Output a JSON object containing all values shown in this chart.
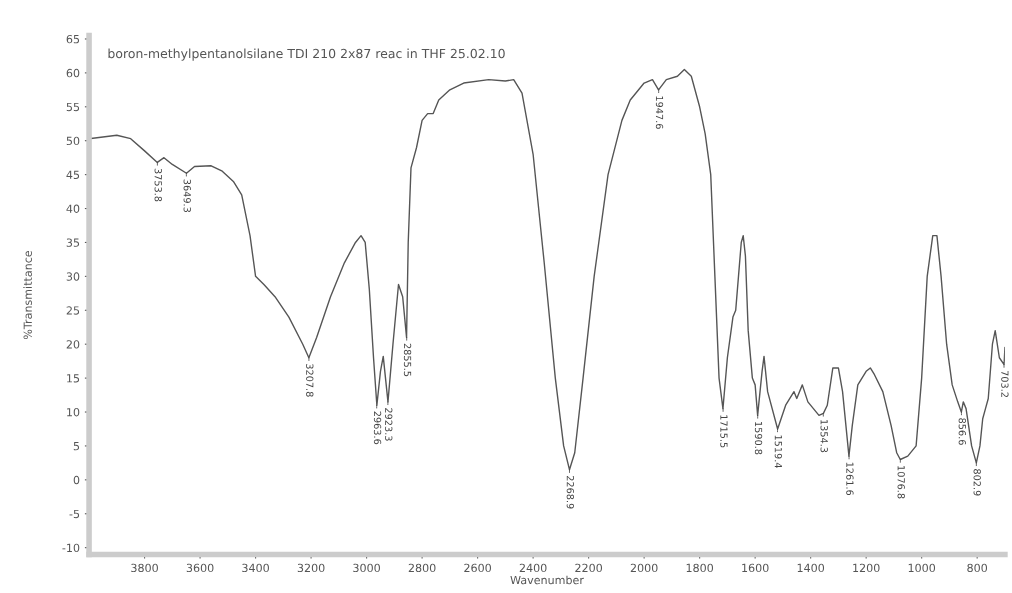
{
  "chart_data": {
    "type": "line",
    "title": "boron-methylpentanolsilane TDI 210 2x87 reac in THF 25.02.10",
    "xlabel": "Wavenumber",
    "ylabel": "%Transmittance",
    "xlim": [
      4000,
      700
    ],
    "ylim": [
      -11,
      65.5
    ],
    "xticks": [
      3800,
      3600,
      3400,
      3200,
      3000,
      2800,
      2600,
      2400,
      2200,
      2000,
      1800,
      1600,
      1400,
      1200,
      1000,
      800
    ],
    "yticks": [
      -10,
      -5,
      0,
      5,
      10,
      15,
      20,
      25,
      30,
      35,
      40,
      45,
      50,
      55,
      60,
      65
    ],
    "grid": false,
    "marker": "none",
    "line_style": "solid",
    "series": [
      {
        "color": "#555555",
        "x": [
          4000,
          3900,
          3850,
          3800,
          3754,
          3730,
          3700,
          3649,
          3620,
          3560,
          3520,
          3480,
          3450,
          3420,
          3400,
          3370,
          3330,
          3280,
          3230,
          3208,
          3180,
          3130,
          3080,
          3040,
          3020,
          3005,
          2990,
          2975,
          2963,
          2950,
          2940,
          2923,
          2905,
          2885,
          2870,
          2856,
          2850,
          2840,
          2820,
          2800,
          2780,
          2760,
          2740,
          2700,
          2650,
          2560,
          2500,
          2470,
          2440,
          2400,
          2360,
          2320,
          2290,
          2269,
          2250,
          2220,
          2180,
          2130,
          2080,
          2050,
          2000,
          1970,
          1948,
          1920,
          1880,
          1855,
          1830,
          1800,
          1780,
          1760,
          1745,
          1730,
          1716,
          1700,
          1680,
          1670,
          1650,
          1643,
          1635,
          1625,
          1610,
          1600,
          1591,
          1575,
          1568,
          1555,
          1519,
          1490,
          1460,
          1450,
          1430,
          1410,
          1390,
          1370,
          1354,
          1340,
          1320,
          1300,
          1285,
          1262,
          1250,
          1230,
          1200,
          1185,
          1170,
          1140,
          1110,
          1090,
          1077,
          1050,
          1020,
          1000,
          980,
          960,
          945,
          930,
          910,
          890,
          870,
          857,
          850,
          840,
          820,
          803,
          790,
          780,
          770,
          760,
          745,
          735,
          720,
          703,
          700
        ],
        "values": [
          50.3,
          50.8,
          50.3,
          48.5,
          46.8,
          47.5,
          46.5,
          45.2,
          46.2,
          46.3,
          45.5,
          44,
          42,
          36,
          30,
          28.8,
          27,
          24,
          20,
          18,
          21,
          27,
          32,
          35,
          36,
          35,
          28,
          18,
          11,
          16,
          18.2,
          11.5,
          20,
          28.8,
          27,
          21,
          35,
          46,
          49,
          53,
          54,
          54,
          56,
          57.5,
          58.5,
          59,
          58.8,
          59,
          57,
          48,
          32,
          15,
          5,
          1.5,
          4,
          15,
          30,
          45,
          53,
          56,
          58.5,
          59,
          57.5,
          59,
          59.5,
          60.5,
          59.5,
          55,
          51,
          45,
          30,
          15,
          10.5,
          18,
          24,
          25,
          35,
          36,
          33,
          22,
          15,
          14,
          9.5,
          16,
          18.2,
          13,
          7.5,
          11,
          13,
          12,
          14,
          11.5,
          10.5,
          9.5,
          9.8,
          11,
          16.5,
          16.5,
          13,
          3.5,
          8,
          14,
          16,
          16.5,
          15.5,
          13,
          8,
          4,
          3,
          3.5,
          5,
          15,
          30,
          36,
          36,
          30,
          20,
          14,
          11.5,
          10,
          11.5,
          10.5,
          5,
          2.5,
          5,
          9,
          10.5,
          12,
          20,
          22,
          18,
          17,
          19.5
        ]
      }
    ],
    "annotations": [
      {
        "text": "3753.8",
        "x": 3753.8,
        "y": 46.8
      },
      {
        "text": "3649.3",
        "x": 3649.3,
        "y": 45.2
      },
      {
        "text": "3207.8",
        "x": 3207.8,
        "y": 18
      },
      {
        "text": "2963.6",
        "x": 2963.6,
        "y": 11
      },
      {
        "text": "2923.3",
        "x": 2923.3,
        "y": 11.5
      },
      {
        "text": "2855.5",
        "x": 2855.5,
        "y": 21
      },
      {
        "text": "2268.9",
        "x": 2268.9,
        "y": 1.5
      },
      {
        "text": "1947.6",
        "x": 1947.6,
        "y": 57.5
      },
      {
        "text": "1715.5",
        "x": 1715.5,
        "y": 10.5
      },
      {
        "text": "1590.8",
        "x": 1590.8,
        "y": 9.5
      },
      {
        "text": "1519.4",
        "x": 1519.4,
        "y": 7.5
      },
      {
        "text": "1354.3",
        "x": 1354.3,
        "y": 9.8
      },
      {
        "text": "1261.6",
        "x": 1261.6,
        "y": 3.5
      },
      {
        "text": "1076.8",
        "x": 1076.8,
        "y": 3
      },
      {
        "text": "856.6",
        "x": 856.6,
        "y": 10
      },
      {
        "text": "802.9",
        "x": 802.9,
        "y": 2.5
      },
      {
        "text": "703.2",
        "x": 703.2,
        "y": 17
      }
    ]
  }
}
